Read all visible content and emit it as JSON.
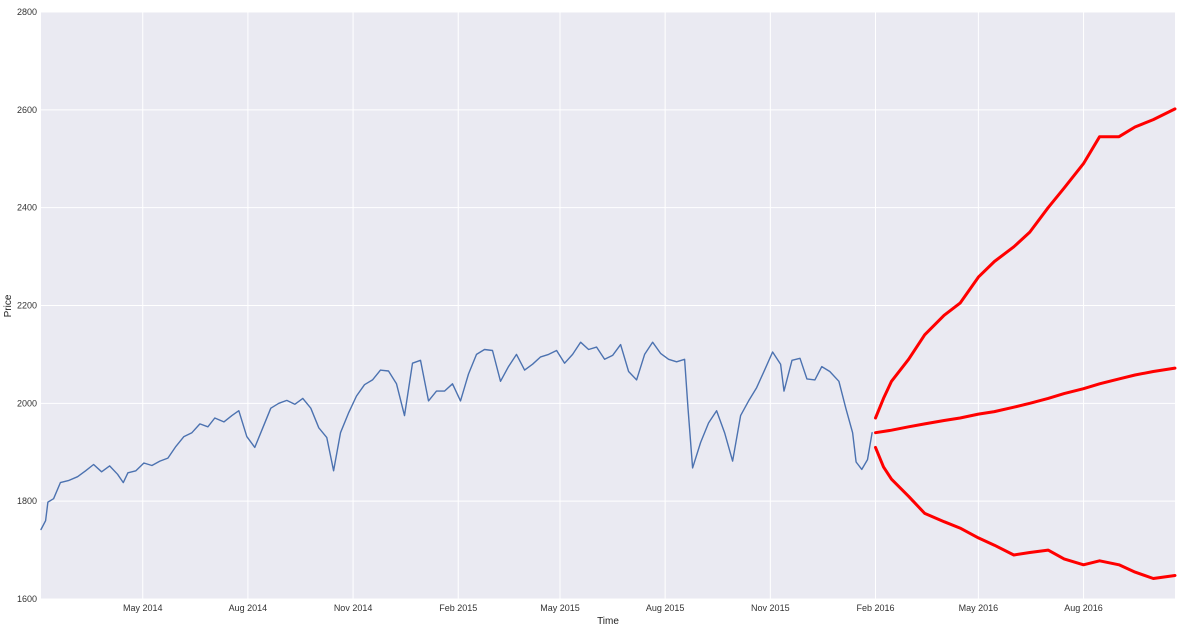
{
  "chart_data": {
    "type": "line",
    "xlabel": "Time",
    "ylabel": "Price",
    "ylim": [
      1600,
      2800
    ],
    "xlim": [
      "2014-02-01",
      "2016-10-20"
    ],
    "y_ticks": [
      1600,
      1800,
      2000,
      2200,
      2400,
      2600,
      2800
    ],
    "x_ticks": [
      {
        "date": "2014-05-01",
        "label": "May 2014"
      },
      {
        "date": "2014-08-01",
        "label": "Aug 2014"
      },
      {
        "date": "2014-11-01",
        "label": "Nov 2014"
      },
      {
        "date": "2015-02-01",
        "label": "Feb 2015"
      },
      {
        "date": "2015-05-01",
        "label": "May 2015"
      },
      {
        "date": "2015-08-01",
        "label": "Aug 2015"
      },
      {
        "date": "2015-11-01",
        "label": "Nov 2015"
      },
      {
        "date": "2016-02-01",
        "label": "Feb 2016"
      },
      {
        "date": "2016-05-01",
        "label": "May 2016"
      },
      {
        "date": "2016-08-01",
        "label": "Aug 2016"
      }
    ],
    "grid": true,
    "background": "#eaeaf2",
    "series": [
      {
        "color": "#4c72b0",
        "points": [
          [
            "2014-02-01",
            1742
          ],
          [
            "2014-02-05",
            1760
          ],
          [
            "2014-02-07",
            1798
          ],
          [
            "2014-02-12",
            1805
          ],
          [
            "2014-02-18",
            1838
          ],
          [
            "2014-02-25",
            1842
          ],
          [
            "2014-03-05",
            1850
          ],
          [
            "2014-03-12",
            1862
          ],
          [
            "2014-03-19",
            1875
          ],
          [
            "2014-03-26",
            1860
          ],
          [
            "2014-04-02",
            1872
          ],
          [
            "2014-04-09",
            1855
          ],
          [
            "2014-04-14",
            1838
          ],
          [
            "2014-04-18",
            1858
          ],
          [
            "2014-04-25",
            1862
          ],
          [
            "2014-05-02",
            1878
          ],
          [
            "2014-05-09",
            1873
          ],
          [
            "2014-05-16",
            1882
          ],
          [
            "2014-05-23",
            1888
          ],
          [
            "2014-05-30",
            1912
          ],
          [
            "2014-06-06",
            1932
          ],
          [
            "2014-06-13",
            1940
          ],
          [
            "2014-06-20",
            1958
          ],
          [
            "2014-06-27",
            1952
          ],
          [
            "2014-07-03",
            1970
          ],
          [
            "2014-07-11",
            1962
          ],
          [
            "2014-07-18",
            1975
          ],
          [
            "2014-07-24",
            1985
          ],
          [
            "2014-07-31",
            1932
          ],
          [
            "2014-08-07",
            1910
          ],
          [
            "2014-08-14",
            1950
          ],
          [
            "2014-08-21",
            1990
          ],
          [
            "2014-08-28",
            2000
          ],
          [
            "2014-09-04",
            2006
          ],
          [
            "2014-09-11",
            1998
          ],
          [
            "2014-09-18",
            2010
          ],
          [
            "2014-09-25",
            1990
          ],
          [
            "2014-10-02",
            1950
          ],
          [
            "2014-10-09",
            1930
          ],
          [
            "2014-10-15",
            1862
          ],
          [
            "2014-10-21",
            1940
          ],
          [
            "2014-10-28",
            1980
          ],
          [
            "2014-11-04",
            2015
          ],
          [
            "2014-11-11",
            2038
          ],
          [
            "2014-11-18",
            2048
          ],
          [
            "2014-11-25",
            2068
          ],
          [
            "2014-12-02",
            2066
          ],
          [
            "2014-12-09",
            2040
          ],
          [
            "2014-12-16",
            1975
          ],
          [
            "2014-12-23",
            2082
          ],
          [
            "2014-12-30",
            2088
          ],
          [
            "2015-01-06",
            2005
          ],
          [
            "2015-01-13",
            2025
          ],
          [
            "2015-01-20",
            2025
          ],
          [
            "2015-01-27",
            2040
          ],
          [
            "2015-02-03",
            2005
          ],
          [
            "2015-02-10",
            2060
          ],
          [
            "2015-02-17",
            2100
          ],
          [
            "2015-02-24",
            2110
          ],
          [
            "2015-03-03",
            2108
          ],
          [
            "2015-03-10",
            2045
          ],
          [
            "2015-03-17",
            2075
          ],
          [
            "2015-03-24",
            2100
          ],
          [
            "2015-03-31",
            2068
          ],
          [
            "2015-04-07",
            2080
          ],
          [
            "2015-04-14",
            2095
          ],
          [
            "2015-04-21",
            2100
          ],
          [
            "2015-04-28",
            2108
          ],
          [
            "2015-05-05",
            2082
          ],
          [
            "2015-05-12",
            2100
          ],
          [
            "2015-05-19",
            2125
          ],
          [
            "2015-05-26",
            2110
          ],
          [
            "2015-06-02",
            2115
          ],
          [
            "2015-06-09",
            2090
          ],
          [
            "2015-06-16",
            2098
          ],
          [
            "2015-06-23",
            2120
          ],
          [
            "2015-06-30",
            2065
          ],
          [
            "2015-07-07",
            2048
          ],
          [
            "2015-07-14",
            2100
          ],
          [
            "2015-07-21",
            2125
          ],
          [
            "2015-07-28",
            2102
          ],
          [
            "2015-08-04",
            2090
          ],
          [
            "2015-08-11",
            2085
          ],
          [
            "2015-08-18",
            2090
          ],
          [
            "2015-08-21",
            1990
          ],
          [
            "2015-08-25",
            1868
          ],
          [
            "2015-09-01",
            1920
          ],
          [
            "2015-09-08",
            1960
          ],
          [
            "2015-09-15",
            1985
          ],
          [
            "2015-09-22",
            1940
          ],
          [
            "2015-09-29",
            1882
          ],
          [
            "2015-10-06",
            1975
          ],
          [
            "2015-10-13",
            2005
          ],
          [
            "2015-10-20",
            2032
          ],
          [
            "2015-10-27",
            2068
          ],
          [
            "2015-11-03",
            2105
          ],
          [
            "2015-11-10",
            2080
          ],
          [
            "2015-11-13",
            2025
          ],
          [
            "2015-11-20",
            2088
          ],
          [
            "2015-11-27",
            2092
          ],
          [
            "2015-12-03",
            2050
          ],
          [
            "2015-12-10",
            2048
          ],
          [
            "2015-12-16",
            2075
          ],
          [
            "2015-12-23",
            2065
          ],
          [
            "2015-12-31",
            2045
          ],
          [
            "2016-01-06",
            1990
          ],
          [
            "2016-01-12",
            1940
          ],
          [
            "2016-01-15",
            1880
          ],
          [
            "2016-01-20",
            1865
          ],
          [
            "2016-01-25",
            1885
          ],
          [
            "2016-01-29",
            1940
          ]
        ]
      },
      {
        "color": "#ff0000",
        "points": [
          [
            "2016-02-01",
            1940
          ],
          [
            "2016-02-15",
            1945
          ],
          [
            "2016-03-01",
            1952
          ],
          [
            "2016-03-15",
            1958
          ],
          [
            "2016-04-01",
            1965
          ],
          [
            "2016-04-15",
            1970
          ],
          [
            "2016-05-01",
            1978
          ],
          [
            "2016-05-15",
            1983
          ],
          [
            "2016-06-01",
            1992
          ],
          [
            "2016-06-15",
            2000
          ],
          [
            "2016-07-01",
            2010
          ],
          [
            "2016-07-15",
            2020
          ],
          [
            "2016-08-01",
            2030
          ],
          [
            "2016-08-15",
            2040
          ],
          [
            "2016-09-01",
            2050
          ],
          [
            "2016-09-15",
            2058
          ],
          [
            "2016-10-01",
            2065
          ],
          [
            "2016-10-20",
            2072
          ]
        ]
      },
      {
        "color": "#ff0000",
        "points": [
          [
            "2016-02-01",
            1970
          ],
          [
            "2016-02-08",
            2010
          ],
          [
            "2016-02-15",
            2045
          ],
          [
            "2016-03-01",
            2090
          ],
          [
            "2016-03-15",
            2140
          ],
          [
            "2016-04-01",
            2180
          ],
          [
            "2016-04-15",
            2205
          ],
          [
            "2016-05-01",
            2258
          ],
          [
            "2016-05-15",
            2290
          ],
          [
            "2016-06-01",
            2320
          ],
          [
            "2016-06-15",
            2350
          ],
          [
            "2016-07-01",
            2400
          ],
          [
            "2016-07-15",
            2440
          ],
          [
            "2016-08-01",
            2490
          ],
          [
            "2016-08-15",
            2545
          ],
          [
            "2016-09-01",
            2545
          ],
          [
            "2016-09-15",
            2565
          ],
          [
            "2016-10-01",
            2580
          ],
          [
            "2016-10-20",
            2602
          ]
        ]
      },
      {
        "color": "#ff0000",
        "points": [
          [
            "2016-02-01",
            1910
          ],
          [
            "2016-02-08",
            1870
          ],
          [
            "2016-02-15",
            1845
          ],
          [
            "2016-03-01",
            1810
          ],
          [
            "2016-03-15",
            1775
          ],
          [
            "2016-04-01",
            1758
          ],
          [
            "2016-04-15",
            1745
          ],
          [
            "2016-05-01",
            1725
          ],
          [
            "2016-05-15",
            1710
          ],
          [
            "2016-06-01",
            1690
          ],
          [
            "2016-06-15",
            1695
          ],
          [
            "2016-07-01",
            1700
          ],
          [
            "2016-07-15",
            1682
          ],
          [
            "2016-08-01",
            1670
          ],
          [
            "2016-08-15",
            1678
          ],
          [
            "2016-09-01",
            1670
          ],
          [
            "2016-09-15",
            1655
          ],
          [
            "2016-10-01",
            1642
          ],
          [
            "2016-10-20",
            1648
          ]
        ]
      }
    ]
  }
}
